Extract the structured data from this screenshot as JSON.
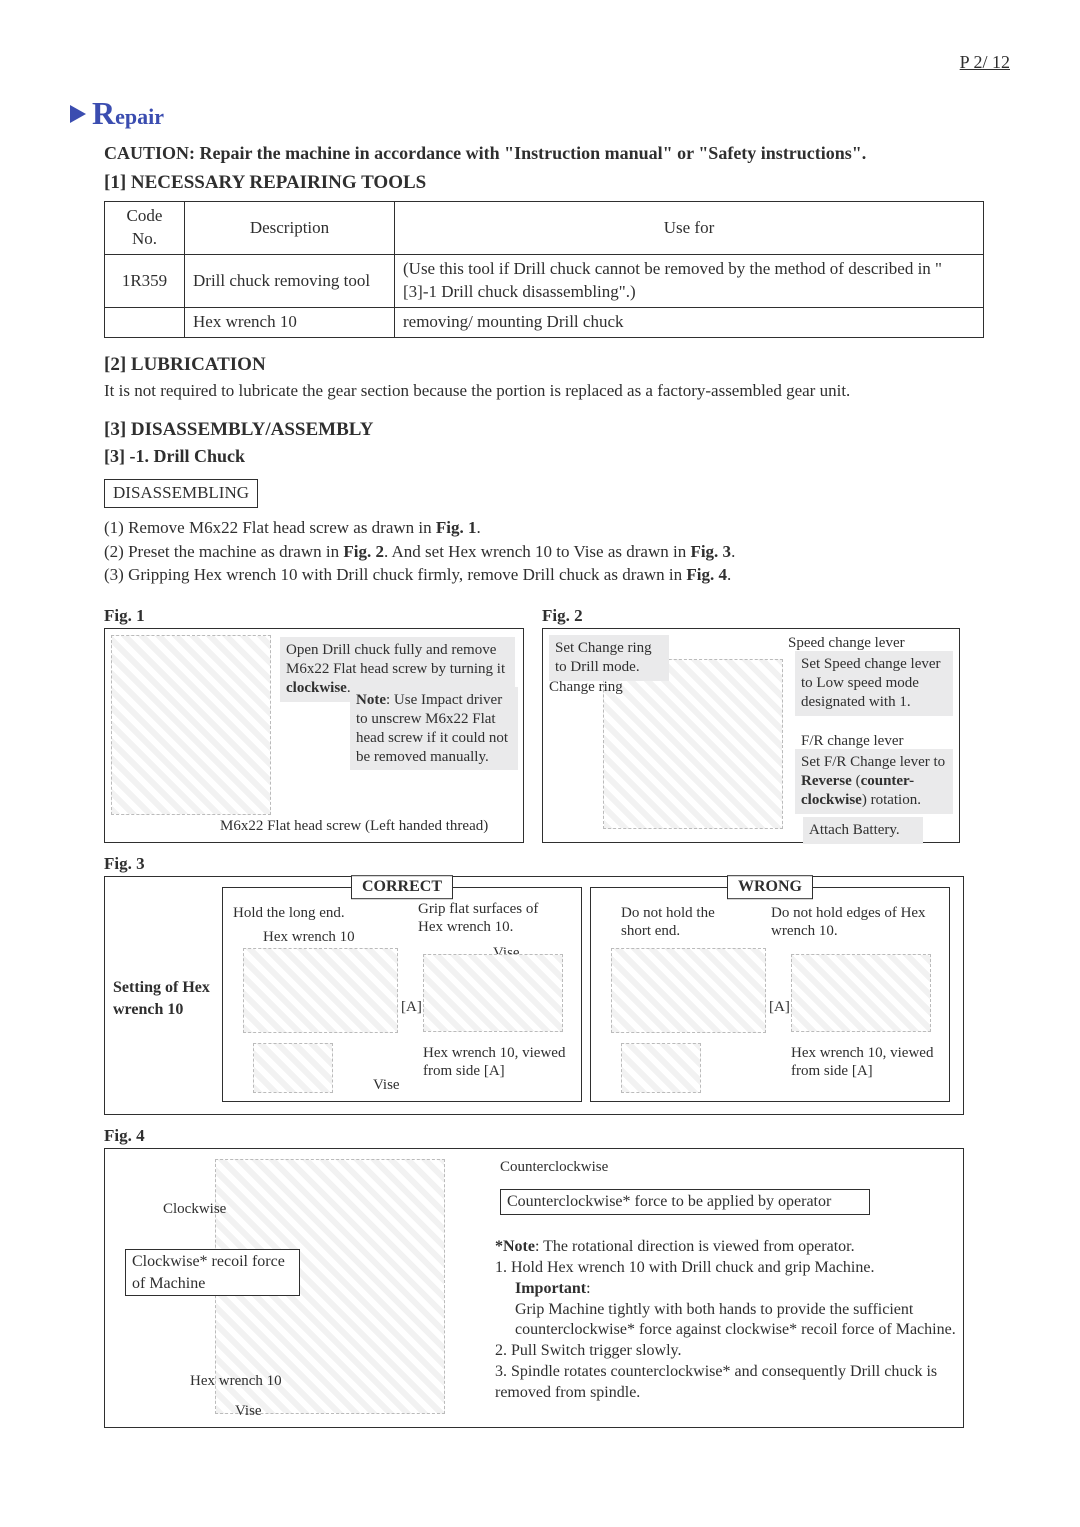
{
  "page_number": "P  2/ 12",
  "header": {
    "title_prefix": "R",
    "title_rest": "epair"
  },
  "caution": "CAUTION: Repair the machine in accordance with \"Instruction  manual\" or \"Safety instructions\".",
  "sec1": {
    "title": "[1] NECESSARY REPAIRING TOOLS",
    "cols": [
      "Code No.",
      "Description",
      "Use for"
    ],
    "rows": [
      [
        "1R359",
        "Drill chuck removing tool",
        "(Use this tool if Drill chuck cannot be removed by the method of described in \"[3]-1 Drill chuck disassembling\".)"
      ],
      [
        "",
        "Hex wrench 10",
        "removing/ mounting Drill chuck"
      ]
    ]
  },
  "sec2": {
    "title": "[2] LUBRICATION",
    "text": "It is not required to lubricate the gear section because the portion is replaced as a factory-assembled gear unit."
  },
  "sec3": {
    "title": "[3] DISASSEMBLY/ASSEMBLY",
    "sub": "[3] -1. Drill Chuck",
    "box": "DISASSEMBLING",
    "steps": [
      "(1) Remove M6x22 Flat head screw as drawn in <b>Fig. 1</b>.",
      "(2) Preset the machine as drawn in <b>Fig. 2</b>. And set Hex wrench 10 to Vise as drawn in <b>Fig. 3</b>.",
      "(3) Gripping Hex wrench 10 with Drill chuck firmly, remove Drill chuck as drawn in <b>Fig. 4</b>."
    ]
  },
  "fig1": {
    "label": "Fig. 1",
    "callout1a": "Open Drill chuck fully and remove M6x22 Flat head screw by turning it ",
    "callout1a_bold": "clockwise",
    "callout1b_prefix": "Note",
    "callout1b": ": Use Impact driver to unscrew M6x22 Flat head screw if it could not be removed manually.",
    "caption": "M6x22 Flat head screw (Left handed thread)"
  },
  "fig2": {
    "label": "Fig. 2",
    "c1": "Set Change ring to Drill mode.",
    "c1b": "Change ring",
    "c2": "Speed change lever",
    "c3": "Set Speed change lever to Low speed mode designated with 1.",
    "c4": "F/R change lever",
    "c5a": "Set F/R Change lever to ",
    "c5b": "Reverse",
    "c5c": " (",
    "c5d": "counter-clockwise",
    "c5e": ") rotation.",
    "c6": "Attach Battery."
  },
  "fig3": {
    "label": "Fig. 3",
    "setting": "Setting of Hex wrench 10",
    "correct": "CORRECT",
    "wrong": "WRONG",
    "hold_long": "Hold the long end.",
    "hex": "Hex wrench 10",
    "grip_flat": "Grip flat surfaces of Hex wrench 10.",
    "vise": "Vise",
    "a": "[A]",
    "side": "Hex wrench 10, viewed from side [A]",
    "no_short": "Do not hold the short end.",
    "no_edge": "Do not hold edges of Hex wrench 10."
  },
  "fig4": {
    "label": "Fig. 4",
    "cw": "Clockwise",
    "ccw": "Counterclockwise",
    "recoil": "Clockwise* recoil force of Machine",
    "ccw_force": "Counterclockwise* force to be applied by operator",
    "hex": "Hex wrench 10",
    "vise": "Vise",
    "note_prefix": "*Note",
    "note": ": The rotational direction is viewed from operator.",
    "l1": "1. Hold Hex wrench 10 with Drill chuck and grip Machine.",
    "imp": "Important",
    "imp2": "Grip Machine tightly with both hands to provide the sufficient counterclockwise* force against clockwise* recoil force of Machine.",
    "l2": "2. Pull Switch trigger slowly.",
    "l3": "3. Spindle rotates counterclockwise* and consequently Drill chuck is removed from spindle."
  },
  "colors": {
    "accent": "#3b4db0",
    "callout_bg": "#eaeaeb",
    "text": "#2f2f2f"
  }
}
